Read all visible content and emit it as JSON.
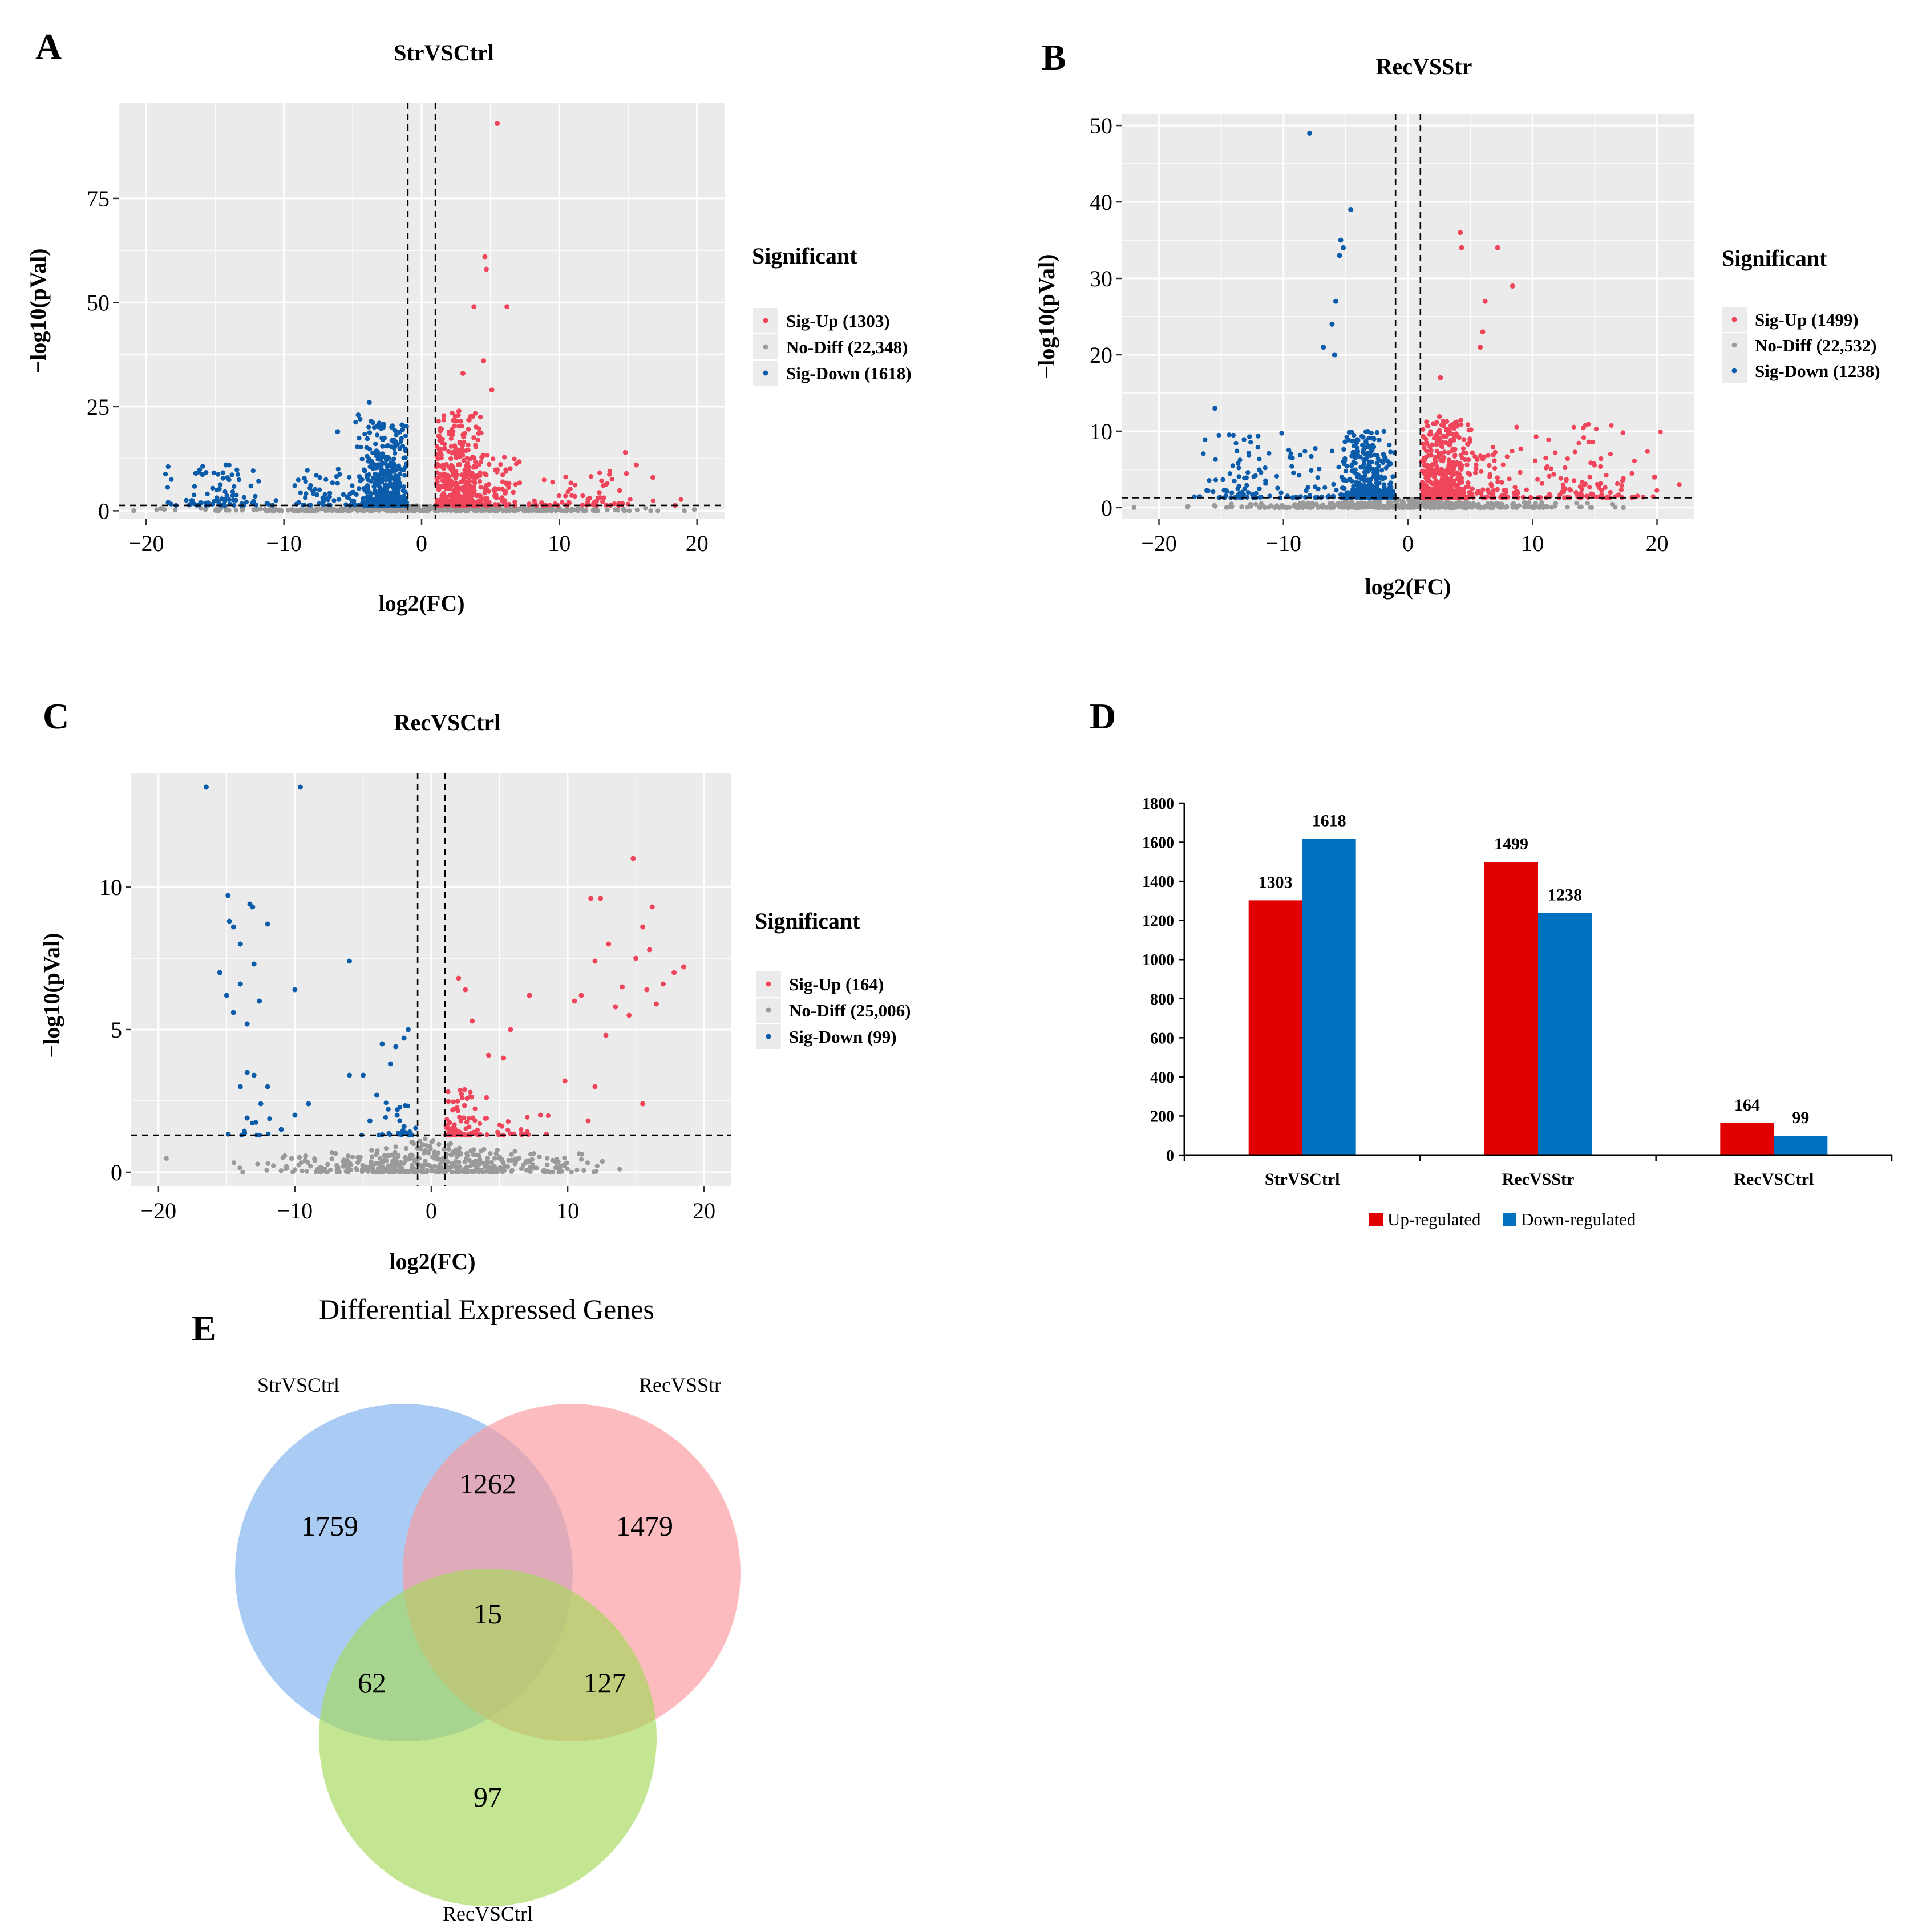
{
  "colors": {
    "up": "#f0455a",
    "down": "#0b5cab",
    "nodiff": "#9a9a9a",
    "panel_bg": "#ebebeb",
    "bar_up": "#e00000",
    "bar_down": "#0070c0",
    "venn_a": "#7eb2ef",
    "venn_b": "#fb9a9e",
    "venn_c": "#a5d85a"
  },
  "chart_data": [
    {
      "id": "A",
      "panel_letter": "A",
      "type": "scatter",
      "title": "StrVSCtrl",
      "xlabel": "log2(FC)",
      "ylabel": "−log10(pVal)",
      "xlim": [
        -22,
        22
      ],
      "ylim": [
        -2,
        98
      ],
      "xticks": [
        -20,
        -10,
        0,
        10,
        20
      ],
      "xtick_labels": [
        "−20",
        "−10",
        "0",
        "10",
        "20"
      ],
      "yticks": [
        0,
        25,
        50,
        75
      ],
      "ytick_labels": [
        "0",
        "25",
        "50",
        "75"
      ],
      "vlines": [
        -1,
        1
      ],
      "hline": 1.3,
      "legend_title": "Significant",
      "legend": [
        {
          "key": "up",
          "label": "Sig-Up (1303)"
        },
        {
          "key": "nodiff",
          "label": "No-Diff (22,348)"
        },
        {
          "key": "down",
          "label": "Sig-Down (1618)"
        }
      ],
      "series": {
        "up": [
          [
            5.5,
            93
          ],
          [
            4.6,
            61
          ],
          [
            4.7,
            58
          ],
          [
            6.2,
            49
          ],
          [
            3.8,
            49
          ],
          [
            4.5,
            36
          ],
          [
            3.0,
            33
          ],
          [
            5.1,
            29
          ],
          [
            14.8,
            14
          ],
          [
            15.6,
            11
          ],
          [
            16.8,
            8
          ]
        ],
        "down": [
          [
            -3.8,
            26
          ],
          [
            -4.6,
            23
          ],
          [
            -6.1,
            19
          ],
          [
            -16.4,
            9
          ],
          [
            -14.2,
            11
          ],
          [
            -18.4,
            2
          ]
        ]
      },
      "clusters": [
        {
          "key": "nodiff",
          "cx": 0,
          "sx": 7,
          "ymax": 1.3,
          "n": 420
        },
        {
          "key": "up",
          "cx": 2.6,
          "sx": 1.0,
          "xmin": 1.05,
          "ymin": 1.3,
          "ymax": 24,
          "n": 420
        },
        {
          "key": "up",
          "cx": 5.5,
          "sx": 1.5,
          "xmin": 3.0,
          "ymin": 1.3,
          "ymax": 14,
          "n": 80
        },
        {
          "key": "up",
          "cx": 12.5,
          "sx": 2.0,
          "ymin": 1.3,
          "ymax": 10,
          "n": 70
        },
        {
          "key": "down",
          "cx": -2.6,
          "sx": 1.0,
          "xmax": -1.05,
          "ymin": 1.3,
          "ymax": 22,
          "n": 420
        },
        {
          "key": "down",
          "cx": -7,
          "sx": 1.5,
          "ymin": 1.3,
          "ymax": 10,
          "n": 60
        },
        {
          "key": "down",
          "cx": -14.5,
          "sx": 1.8,
          "ymin": 1.3,
          "ymax": 11,
          "n": 80
        }
      ]
    },
    {
      "id": "B",
      "panel_letter": "B",
      "type": "scatter",
      "title": "RecVSStr",
      "xlabel": "log2(FC)",
      "ylabel": "−log10(pVal)",
      "xlim": [
        -23,
        23
      ],
      "ylim": [
        -1.5,
        51.5
      ],
      "xticks": [
        -20,
        -10,
        0,
        10,
        20
      ],
      "xtick_labels": [
        "−20",
        "−10",
        "0",
        "10",
        "20"
      ],
      "yticks": [
        0,
        10,
        20,
        30,
        40,
        50
      ],
      "ytick_labels": [
        "0",
        "10",
        "20",
        "30",
        "40",
        "50"
      ],
      "vlines": [
        -1,
        1
      ],
      "hline": 1.3,
      "legend_title": "Significant",
      "legend": [
        {
          "key": "up",
          "label": "Sig-Up (1499)"
        },
        {
          "key": "nodiff",
          "label": "No-Diff (22,532)"
        },
        {
          "key": "down",
          "label": "Sig-Down (1238)"
        }
      ],
      "series": {
        "up": [
          [
            4.2,
            36
          ],
          [
            4.3,
            34
          ],
          [
            7.2,
            34
          ],
          [
            8.4,
            29
          ],
          [
            6.2,
            27
          ],
          [
            6.0,
            23
          ],
          [
            5.8,
            21
          ],
          [
            2.6,
            17
          ],
          [
            19.8,
            4
          ]
        ],
        "down": [
          [
            -7.9,
            49
          ],
          [
            -4.6,
            39
          ],
          [
            -5.4,
            35
          ],
          [
            -5.2,
            34
          ],
          [
            -5.5,
            33
          ],
          [
            -5.8,
            27
          ],
          [
            -6.1,
            24
          ],
          [
            -6.8,
            21
          ],
          [
            -5.9,
            20
          ],
          [
            -15.5,
            13
          ]
        ]
      },
      "clusters": [
        {
          "key": "nodiff",
          "cx": 0,
          "sx": 7,
          "ymax": 1.3,
          "n": 420
        },
        {
          "key": "up",
          "cx": 2.8,
          "sx": 1.1,
          "xmin": 1.05,
          "ymin": 1.3,
          "ymax": 12,
          "n": 450
        },
        {
          "key": "up",
          "cx": 6.5,
          "sx": 2.0,
          "xmin": 3.5,
          "ymin": 1.3,
          "ymax": 8,
          "n": 90
        },
        {
          "key": "up",
          "cx": 14.5,
          "sx": 2.5,
          "ymin": 1.3,
          "ymax": 11,
          "n": 110
        },
        {
          "key": "down",
          "cx": -3.2,
          "sx": 1.2,
          "xmax": -1.05,
          "ymin": 1.3,
          "ymax": 10,
          "n": 380
        },
        {
          "key": "down",
          "cx": -8,
          "sx": 1.5,
          "ymin": 1.3,
          "ymax": 8,
          "n": 40
        },
        {
          "key": "down",
          "cx": -13.5,
          "sx": 1.5,
          "ymin": 1.3,
          "ymax": 10,
          "n": 80
        }
      ]
    },
    {
      "id": "C",
      "panel_letter": "C",
      "type": "scatter",
      "title": "RecVSCtrl",
      "xlabel": "log2(FC)",
      "ylabel": "−log10(pVal)",
      "xlim": [
        -22,
        22
      ],
      "ylim": [
        -0.5,
        14.0
      ],
      "xticks": [
        -20,
        -10,
        0,
        10,
        20
      ],
      "xtick_labels": [
        "−20",
        "−10",
        "0",
        "10",
        "20"
      ],
      "yticks": [
        0,
        5,
        10
      ],
      "ytick_labels": [
        "0",
        "5",
        "10"
      ],
      "vlines": [
        -1,
        1
      ],
      "hline": 1.3,
      "legend_title": "Significant",
      "legend": [
        {
          "key": "up",
          "label": "Sig-Up (164)"
        },
        {
          "key": "nodiff",
          "label": "No-Diff (25,006)"
        },
        {
          "key": "down",
          "label": "Sig-Down (99)"
        }
      ],
      "series": {
        "up": [
          [
            14.8,
            11.0
          ],
          [
            11.7,
            9.6
          ],
          [
            12.4,
            9.6
          ],
          [
            16.2,
            9.3
          ],
          [
            15.5,
            8.6
          ],
          [
            18.5,
            7.2
          ],
          [
            17.8,
            7.0
          ],
          [
            13.0,
            8.0
          ],
          [
            15.0,
            7.5
          ],
          [
            16.0,
            7.8
          ],
          [
            12.0,
            7.4
          ],
          [
            14.0,
            6.5
          ],
          [
            17.0,
            6.6
          ],
          [
            15.8,
            6.4
          ],
          [
            11.0,
            6.2
          ],
          [
            10.5,
            6.0
          ],
          [
            13.5,
            5.8
          ],
          [
            14.5,
            5.5
          ],
          [
            16.5,
            5.9
          ],
          [
            12.8,
            4.8
          ],
          [
            2.0,
            6.8
          ],
          [
            2.5,
            6.4
          ],
          [
            5.3,
            4.0
          ],
          [
            4.2,
            4.1
          ],
          [
            7.2,
            6.2
          ],
          [
            5.8,
            5.0
          ],
          [
            3.0,
            5.3
          ],
          [
            9.8,
            3.2
          ],
          [
            12.0,
            3.0
          ],
          [
            15.5,
            2.4
          ],
          [
            11.5,
            1.8
          ],
          [
            8.0,
            2.0
          ]
        ],
        "down": [
          [
            -16.5,
            13.5
          ],
          [
            -9.6,
            13.5
          ],
          [
            -14.9,
            9.7
          ],
          [
            -13.3,
            9.4
          ],
          [
            -13.1,
            9.3
          ],
          [
            -14.8,
            8.8
          ],
          [
            -14.5,
            8.6
          ],
          [
            -12.0,
            8.7
          ],
          [
            -14.0,
            8.0
          ],
          [
            -15.5,
            7.0
          ],
          [
            -13.0,
            7.3
          ],
          [
            -14.0,
            6.6
          ],
          [
            -10.0,
            6.4
          ],
          [
            -15.0,
            6.2
          ],
          [
            -14.5,
            5.6
          ],
          [
            -13.5,
            5.2
          ],
          [
            -12.6,
            6.0
          ],
          [
            -6.0,
            7.4
          ],
          [
            -3.6,
            4.5
          ],
          [
            -2.0,
            4.7
          ],
          [
            -2.6,
            4.4
          ],
          [
            -1.7,
            5.0
          ],
          [
            -13.5,
            3.5
          ],
          [
            -13.0,
            3.4
          ],
          [
            -12.0,
            3.0
          ],
          [
            -14.0,
            3.0
          ],
          [
            -12.5,
            2.4
          ],
          [
            -10.0,
            2.0
          ],
          [
            -9.0,
            2.4
          ],
          [
            -6.0,
            3.4
          ],
          [
            -5.0,
            3.4
          ],
          [
            -4.0,
            2.7
          ],
          [
            -3.0,
            3.8
          ],
          [
            -2.5,
            2.0
          ],
          [
            -4.5,
            1.8
          ],
          [
            -2.0,
            1.6
          ],
          [
            -13.5,
            1.9
          ],
          [
            -11.0,
            1.5
          ]
        ]
      },
      "clusters": [
        {
          "key": "nodiff",
          "cx": 0,
          "sx": 5.5,
          "ymax": 1.3,
          "n": 480
        },
        {
          "key": "up",
          "cx": 2.0,
          "sx": 1.0,
          "xmin": 1.05,
          "ymin": 1.3,
          "ymax": 3.0,
          "n": 80
        },
        {
          "key": "up",
          "cx": 6.0,
          "sx": 2.0,
          "xmin": 3.0,
          "ymin": 1.3,
          "ymax": 2.0,
          "n": 25
        },
        {
          "key": "down",
          "cx": -2.5,
          "sx": 1.0,
          "xmax": -1.05,
          "ymin": 1.3,
          "ymax": 2.5,
          "n": 25
        },
        {
          "key": "down",
          "cx": -13.0,
          "sx": 1.0,
          "ymin": 1.3,
          "ymax": 2.0,
          "n": 10
        }
      ]
    },
    {
      "id": "D",
      "panel_letter": "D",
      "type": "bar",
      "categories": [
        "StrVSCtrl",
        "RecVSStr",
        "RecVSCtrl"
      ],
      "series": [
        {
          "name": "Up-regulated",
          "key": "bar_up",
          "values": [
            1303,
            1499,
            164
          ]
        },
        {
          "name": "Down-regulated",
          "key": "bar_down",
          "values": [
            1618,
            1238,
            99
          ]
        }
      ],
      "ylim": [
        0,
        1800
      ],
      "yticks": [
        0,
        200,
        400,
        600,
        800,
        1000,
        1200,
        1400,
        1600,
        1800
      ],
      "ytick_labels": [
        "0",
        "200",
        "400",
        "600",
        "800",
        "1000",
        "1200",
        "1400",
        "1600",
        "1800"
      ],
      "legend_placement": "bottom"
    },
    {
      "id": "E",
      "panel_letter": "E",
      "type": "venn",
      "title": "Differential Expressed Genes",
      "sets": [
        "StrVSCtrl",
        "RecVSStr",
        "RecVSCtrl"
      ],
      "regions": {
        "a_only": 1759,
        "b_only": 1479,
        "c_only": 97,
        "ab": 1262,
        "ac": 62,
        "bc": 127,
        "abc": 15
      },
      "region_labels": {
        "a_only": "1759",
        "b_only": "1479",
        "c_only": "97",
        "ab": "1262",
        "ac": "62",
        "bc": "127",
        "abc": "15"
      }
    }
  ]
}
